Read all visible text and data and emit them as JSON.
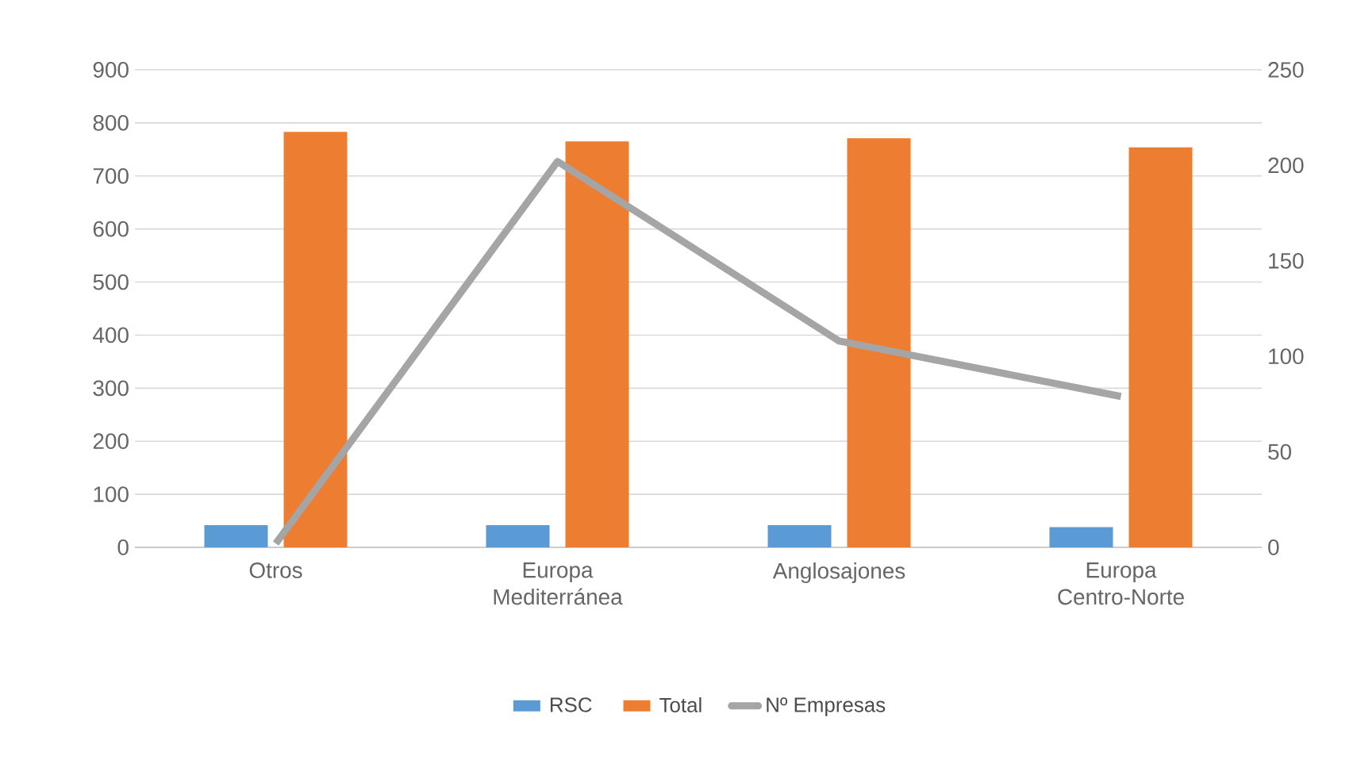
{
  "chart_data": {
    "type": "bar",
    "categories": [
      "Otros",
      "Europa Mediterránea",
      "Anglosajones",
      "Europa Centro-Norte"
    ],
    "series": [
      {
        "name": "RSC",
        "color": "#5b9bd5",
        "values": [
          42,
          42,
          42,
          38
        ]
      },
      {
        "name": "Total",
        "color": "#ed7d31",
        "values": [
          783,
          765,
          771,
          754
        ]
      },
      {
        "name": "Nº Empresas",
        "type": "line",
        "axis": "y2",
        "color": "#a5a5a5",
        "values": [
          2,
          202,
          108,
          79
        ]
      }
    ],
    "ylim": [
      0,
      900
    ],
    "yticks": [
      0,
      100,
      200,
      300,
      400,
      500,
      600,
      700,
      800,
      900
    ],
    "y2lim": [
      0,
      250
    ],
    "y2ticks": [
      0,
      50,
      100,
      150,
      200,
      250
    ],
    "grid": "y",
    "legend": "bottom"
  }
}
